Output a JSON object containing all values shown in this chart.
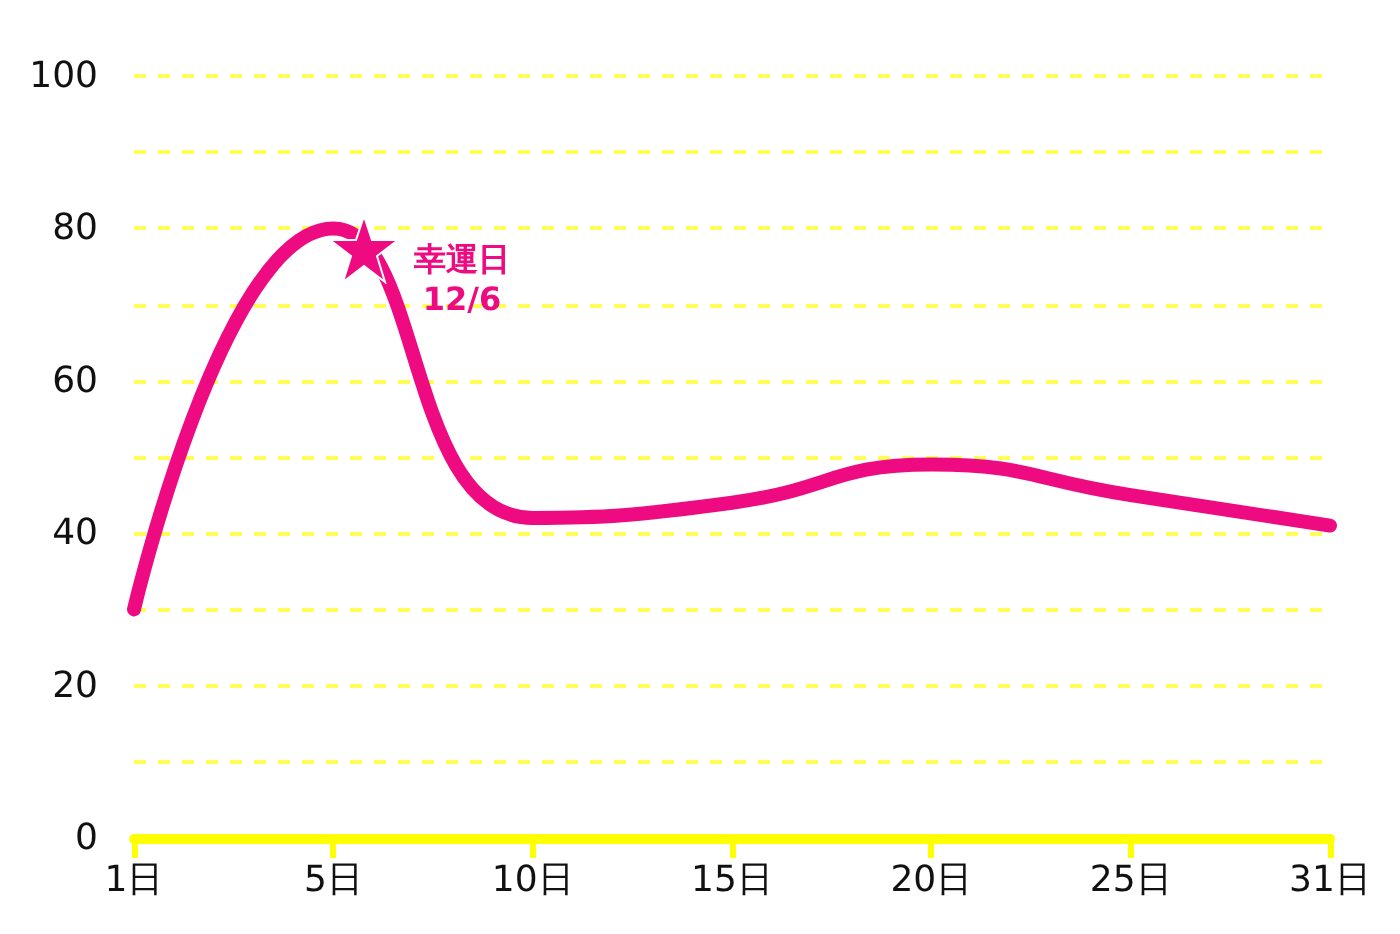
{
  "chart_data": {
    "type": "line",
    "categories": [
      "1日",
      "5日",
      "10日",
      "15日",
      "20日",
      "25日",
      "31日"
    ],
    "series": [
      {
        "color": "#ee0a80",
        "values": [
          30,
          80,
          42,
          44,
          49,
          45,
          41
        ]
      }
    ],
    "ylim": [
      0,
      100
    ],
    "yticks": [
      0,
      {
        "value": 10,
        "label": null
      },
      20,
      {
        "value": 30,
        "label": null
      },
      40,
      {
        "value": 50,
        "label": null
      },
      60,
      {
        "value": 70,
        "label": null
      },
      80,
      {
        "value": 90,
        "label": null
      },
      100
    ],
    "annotations": [
      "幸運日\n12/6"
    ],
    "grid": "y",
    "marker": "none",
    "line_style": "solid"
  }
}
